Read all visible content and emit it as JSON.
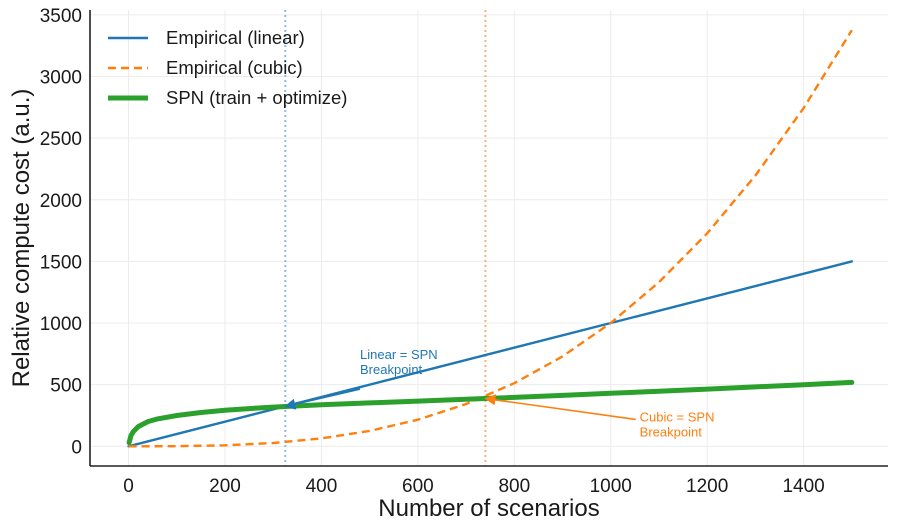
{
  "chart_data": {
    "type": "line",
    "title": "",
    "xlabel": "Number of scenarios",
    "ylabel": "Relative compute cost (a.u.)",
    "xlim": [
      -80,
      1575
    ],
    "ylim": [
      -160,
      3540
    ],
    "xticks": [
      0,
      200,
      400,
      600,
      800,
      1000,
      1200,
      1400
    ],
    "yticks": [
      0,
      500,
      1000,
      1500,
      2000,
      2500,
      3000,
      3500
    ],
    "grid": true,
    "legend_position": "top-left",
    "series": [
      {
        "name": "Empirical (linear)",
        "style": "solid",
        "color": "#1f77b4",
        "x": [
          0,
          1500
        ],
        "y": [
          0,
          1500
        ]
      },
      {
        "name": "Empirical (cubic)",
        "style": "dashed",
        "color": "#ff7f0e",
        "x": [
          0,
          100,
          200,
          300,
          400,
          500,
          600,
          700,
          800,
          900,
          1000,
          1100,
          1200,
          1300,
          1400,
          1500
        ],
        "y": [
          0,
          1,
          8,
          27,
          64,
          125,
          216,
          343,
          512,
          729,
          1000,
          1331,
          1728,
          2197,
          2744,
          3375
        ]
      },
      {
        "name": "SPN (train + optimize)",
        "style": "solid-thick",
        "color": "#2ca02c",
        "x": [
          1,
          5,
          10,
          20,
          40,
          60,
          100,
          150,
          200,
          250,
          300,
          325,
          400,
          500,
          600,
          700,
          740,
          800,
          900,
          1000,
          1100,
          1200,
          1300,
          1400,
          1500
        ],
        "y": [
          30,
          88,
          120,
          160,
          200,
          222,
          250,
          274,
          292,
          306,
          318,
          323,
          337,
          352,
          367,
          382,
          388,
          397,
          413,
          430,
          447,
          464,
          482,
          500,
          518
        ]
      }
    ],
    "vlines": [
      {
        "x": 325,
        "color": "#8cbde6",
        "style": "dotted"
      },
      {
        "x": 740,
        "color": "#f8b27a",
        "style": "dotted"
      }
    ],
    "annotations": [
      {
        "text_lines": [
          "Linear = SPN",
          "Breakpoint"
        ],
        "color": "#1f77b4",
        "arrow_target": [
          325,
          323
        ],
        "text_anchor_data": [
          480,
          610
        ]
      },
      {
        "text_lines": [
          "Cubic = SPN",
          "Breakpoint"
        ],
        "color": "#ff7f0e",
        "arrow_target": [
          740,
          388
        ],
        "text_anchor_data": [
          1060,
          250
        ]
      }
    ]
  }
}
